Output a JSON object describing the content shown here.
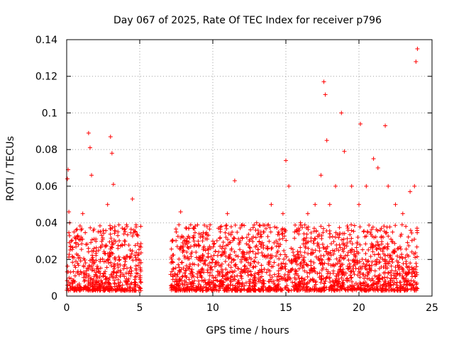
{
  "chart_data": {
    "type": "scatter",
    "title": "Day 067 of 2025, Rate Of TEC Index for receiver p796",
    "xlabel": "GPS time / hours",
    "ylabel": "ROTI / TECUs",
    "xlim": [
      0,
      25
    ],
    "ylim": [
      0,
      0.14
    ],
    "xticks": [
      0,
      5,
      10,
      15,
      20,
      25
    ],
    "yticks": [
      0,
      0.02,
      0.04,
      0.06,
      0.08,
      0.1,
      0.12,
      0.14
    ],
    "xtick_labels": [
      "0",
      "5",
      "10",
      "15",
      "20",
      "25"
    ],
    "ytick_labels": [
      "0",
      "0.02",
      "0.04",
      "0.06",
      "0.08",
      "0.1",
      "0.12",
      "0.14"
    ],
    "grid": true,
    "marker": "plus",
    "color": "#ff0000",
    "coverage_intervals": [
      [
        0,
        5.1
      ],
      [
        7.1,
        24
      ]
    ],
    "series": [
      {
        "x": [
          0.05,
          0.1,
          0.15,
          0.2,
          0.3,
          0.5,
          0.8,
          1.1,
          1.5,
          1.6,
          1.7,
          2.0,
          2.3,
          2.8,
          3.0,
          3.1,
          3.2,
          3.5,
          4.0,
          4.5,
          4.7,
          4.9,
          5.0,
          7.2,
          7.5,
          7.8,
          8.2,
          8.7,
          9.0,
          9.5,
          10.0,
          10.5,
          11.0,
          11.5,
          12.0,
          12.5,
          13.0,
          13.5,
          14.0,
          14.5,
          14.8,
          15.0,
          15.2,
          15.6,
          16.0,
          16.5,
          17.0,
          17.4,
          17.6,
          17.7,
          17.8,
          18.0,
          18.4,
          18.8,
          19.0,
          19.5,
          20.0,
          20.1,
          20.5,
          21.0,
          21.3,
          21.8,
          22.0,
          22.5,
          23.0,
          23.5,
          23.8,
          23.9,
          24.0
        ],
        "y": [
          0.064,
          0.069,
          0.046,
          0.04,
          0.03,
          0.035,
          0.028,
          0.045,
          0.089,
          0.081,
          0.066,
          0.03,
          0.035,
          0.05,
          0.087,
          0.078,
          0.061,
          0.033,
          0.03,
          0.053,
          0.035,
          0.02,
          0.01,
          0.03,
          0.035,
          0.046,
          0.037,
          0.032,
          0.03,
          0.034,
          0.03,
          0.032,
          0.045,
          0.063,
          0.032,
          0.03,
          0.04,
          0.035,
          0.05,
          0.035,
          0.045,
          0.074,
          0.06,
          0.035,
          0.04,
          0.045,
          0.05,
          0.066,
          0.117,
          0.11,
          0.085,
          0.05,
          0.06,
          0.1,
          0.079,
          0.06,
          0.05,
          0.094,
          0.06,
          0.075,
          0.07,
          0.093,
          0.06,
          0.05,
          0.045,
          0.057,
          0.06,
          0.128,
          0.135
        ]
      }
    ]
  }
}
